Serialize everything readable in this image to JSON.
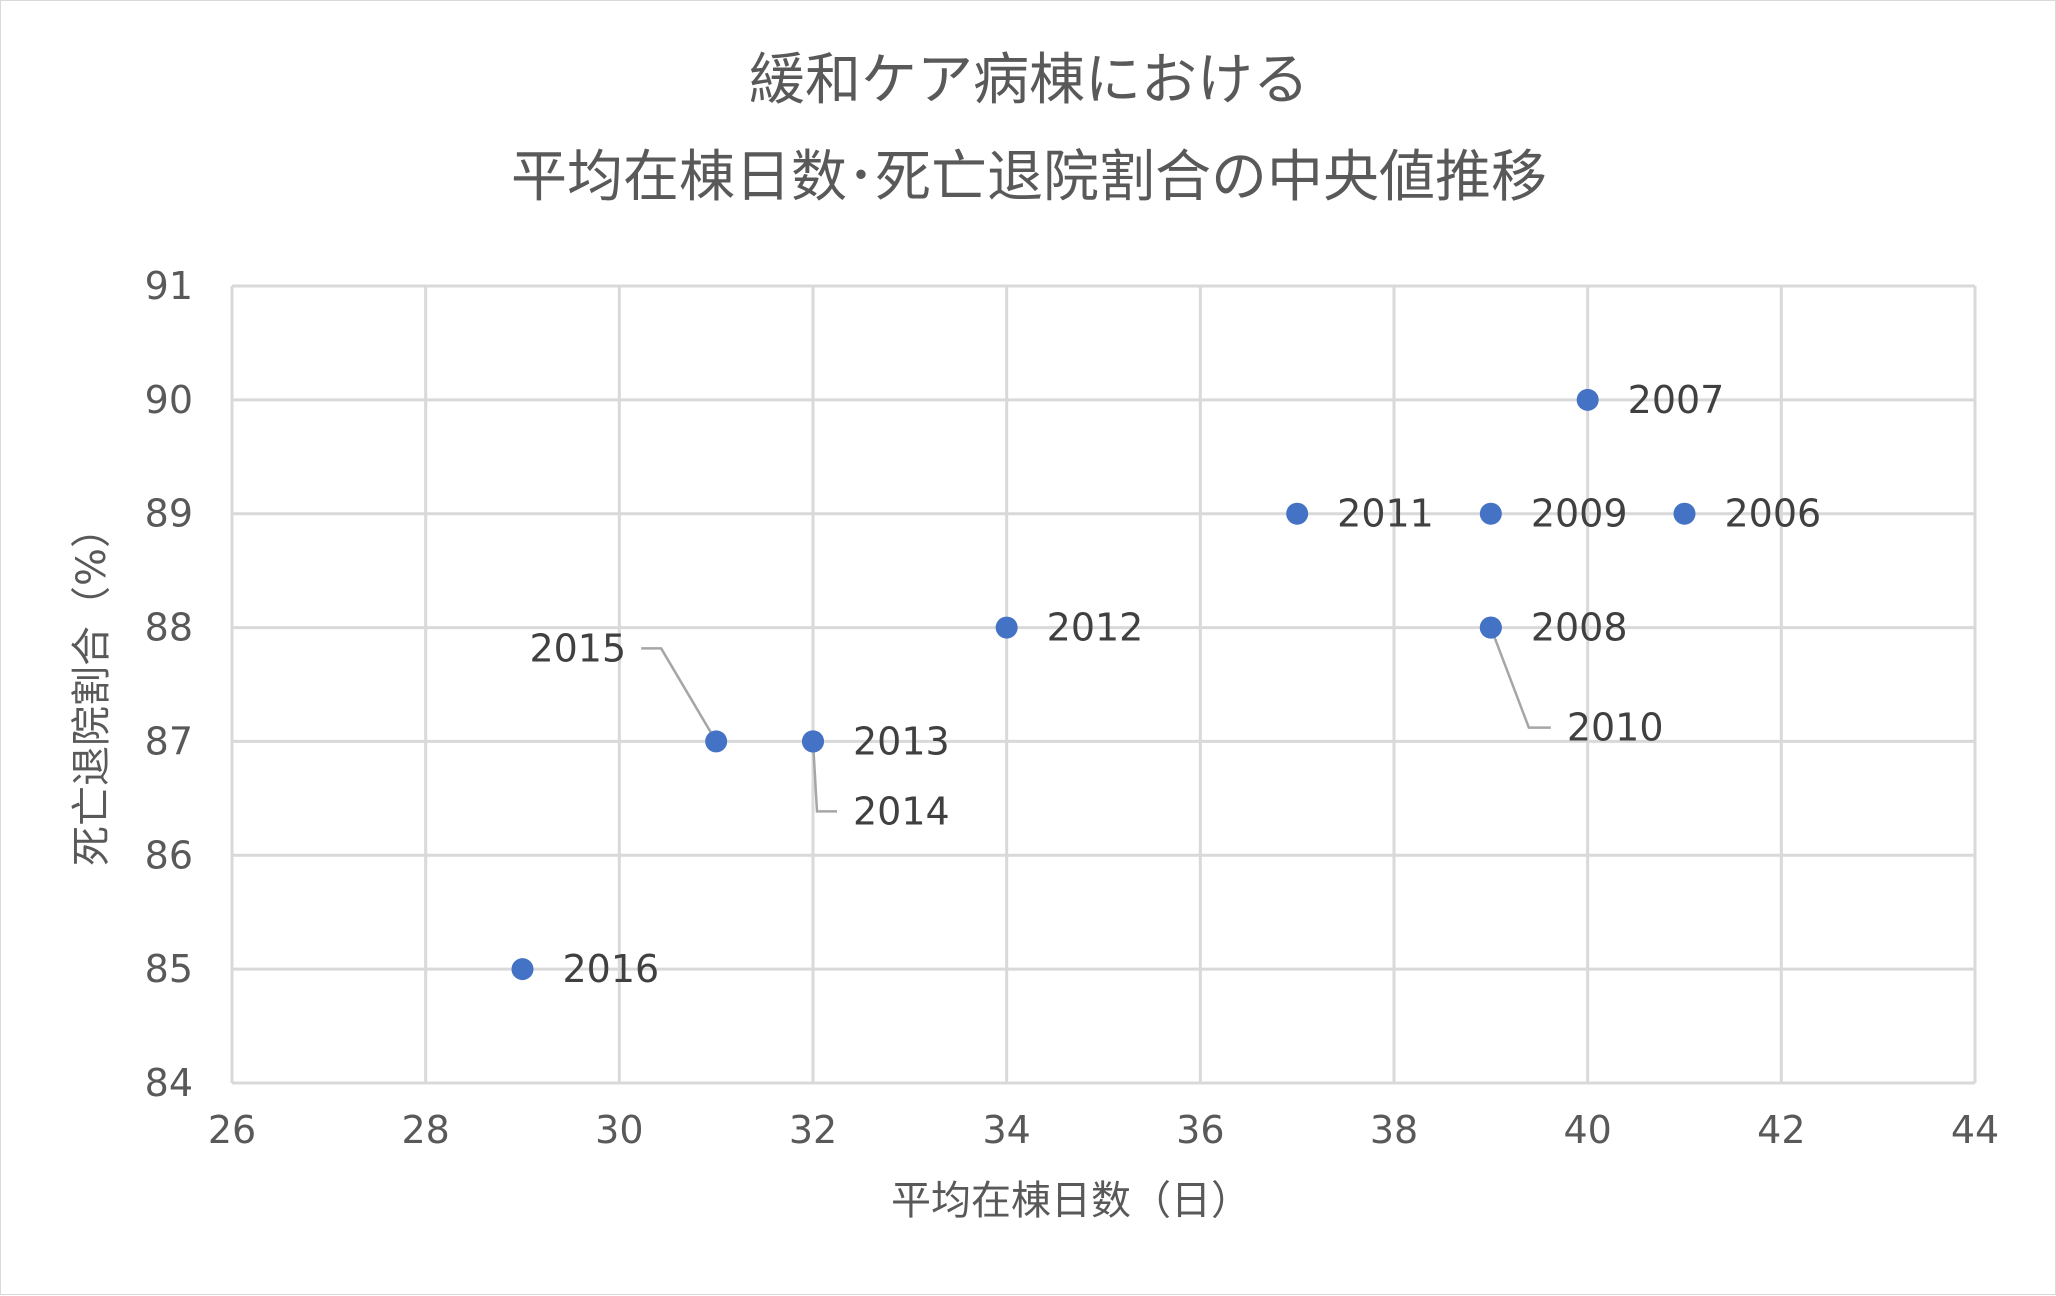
{
  "chart_data": {
    "type": "scatter",
    "title_lines": [
      "緩和ケア病棟における",
      "平均在棟日数･死亡退院割合の中央値推移"
    ],
    "xlabel": "平均在棟日数（日）",
    "ylabel": "死亡退院割合（%）",
    "xlim": [
      26,
      44
    ],
    "ylim": [
      84,
      91
    ],
    "x_ticks": [
      26,
      28,
      30,
      32,
      34,
      36,
      38,
      40,
      42,
      44
    ],
    "y_ticks": [
      84,
      85,
      86,
      87,
      88,
      89,
      90,
      91
    ],
    "x_tick_labels": [
      "26",
      "28",
      "30",
      "32",
      "34",
      "36",
      "38",
      "40",
      "42",
      "44"
    ],
    "y_tick_labels": [
      "84",
      "85",
      "86",
      "87",
      "88",
      "89",
      "90",
      "91"
    ],
    "grid": true,
    "marker_color": "#4472c4",
    "points": [
      {
        "label": "2006",
        "x": 41,
        "y": 89
      },
      {
        "label": "2007",
        "x": 40,
        "y": 90
      },
      {
        "label": "2008",
        "x": 39,
        "y": 88
      },
      {
        "label": "2009",
        "x": 39,
        "y": 89
      },
      {
        "label": "2010",
        "x": 39,
        "y": 88
      },
      {
        "label": "2011",
        "x": 37,
        "y": 89
      },
      {
        "label": "2012",
        "x": 34,
        "y": 88
      },
      {
        "label": "2013",
        "x": 32,
        "y": 87
      },
      {
        "label": "2014",
        "x": 32,
        "y": 87
      },
      {
        "label": "2015",
        "x": 31,
        "y": 87
      },
      {
        "label": "2016",
        "x": 29,
        "y": 85
      }
    ]
  }
}
